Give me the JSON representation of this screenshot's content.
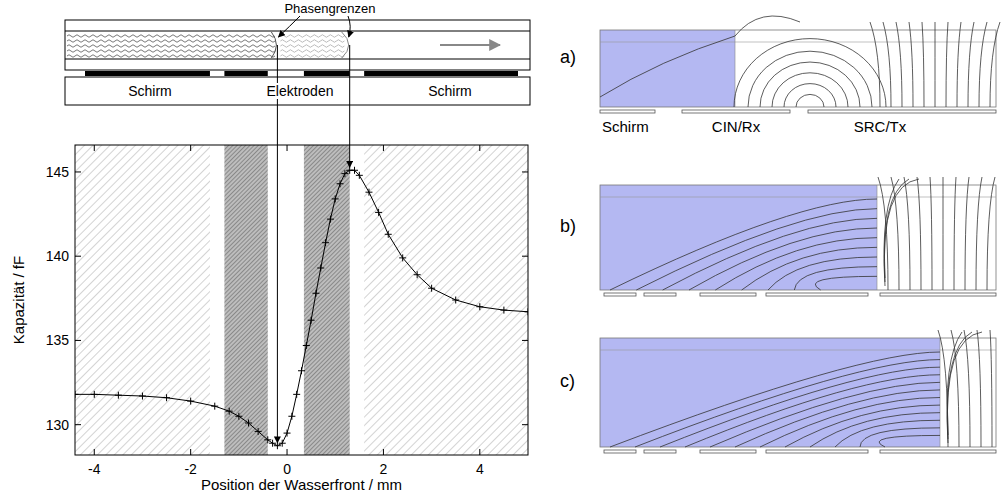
{
  "chart_data": {
    "type": "line",
    "x": [
      -4.4,
      -4.0,
      -3.5,
      -3.0,
      -2.5,
      -2.0,
      -1.5,
      -1.2,
      -1.0,
      -0.8,
      -0.6,
      -0.4,
      -0.3,
      -0.2,
      -0.1,
      0.0,
      0.1,
      0.2,
      0.3,
      0.4,
      0.5,
      0.6,
      0.7,
      0.8,
      0.9,
      1.0,
      1.1,
      1.2,
      1.3,
      1.4,
      1.5,
      1.7,
      1.9,
      2.1,
      2.4,
      2.7,
      3.0,
      3.5,
      4.0,
      4.5,
      5.0
    ],
    "values": [
      131.8,
      131.8,
      131.75,
      131.7,
      131.6,
      131.4,
      131.1,
      130.8,
      130.5,
      130.1,
      129.6,
      129.1,
      128.9,
      128.75,
      128.9,
      129.5,
      130.5,
      131.8,
      133.2,
      134.7,
      136.2,
      137.8,
      139.3,
      140.8,
      142.2,
      143.4,
      144.3,
      144.9,
      145.1,
      145.1,
      144.8,
      143.8,
      142.6,
      141.3,
      139.9,
      138.9,
      138.1,
      137.4,
      137.0,
      136.8,
      136.7
    ],
    "xlim": [
      -4.4,
      5.0
    ],
    "ylim": [
      128.2,
      146.6
    ],
    "xticks": [
      -4,
      -2,
      0,
      2,
      4
    ],
    "yticks": [
      130,
      135,
      140,
      145
    ],
    "x_label": "Position der Wasserfront  /  mm",
    "y_label": "Kapazität  /  fF",
    "color": "#000000",
    "marker": "plus",
    "line_style": "solid",
    "shield_regions": [
      [
        -4.4,
        -1.6
      ],
      [
        1.6,
        5.0
      ]
    ],
    "electrode_regions": [
      [
        -1.3,
        -0.4
      ],
      [
        0.35,
        1.3
      ]
    ]
  },
  "schematic": {
    "annotation": "Phasengrenzen",
    "labels": [
      "Schirm",
      "Elektroden",
      "Schirm"
    ]
  },
  "field_panels": {
    "letters": [
      "a)",
      "b)",
      "c)"
    ],
    "electrode_labels": [
      "Schirm",
      "CIN/Rx",
      "SRC/Tx"
    ]
  }
}
